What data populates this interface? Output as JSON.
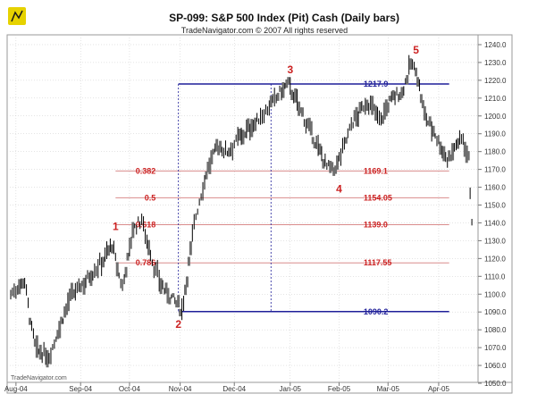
{
  "header": {
    "title": "SP-099:  S&P 500 Index (Pit) Cash  (Daily bars)",
    "subtitle": "TradeNavigator.com © 2007 All rights reserved"
  },
  "watermark": "TradeNavigator.com",
  "colors": {
    "fib_line": "#d98c8c",
    "fib_label": "#cc2222",
    "extreme_line": "#1f1f99",
    "extreme_label": "#1f1f99",
    "wave_label": "#cc2222",
    "logo_yellow": "#e6d200",
    "grid": "#c8c8c8"
  },
  "icons": {
    "logo": "trade-navigator-logo-icon"
  },
  "chart_data": {
    "type": "bar",
    "subtype": "ohlc",
    "ylim": [
      1051,
      1245
    ],
    "y_ticks": [
      1050.0,
      1060.0,
      1070.0,
      1080.0,
      1090.0,
      1100.0,
      1110.0,
      1120.0,
      1130.0,
      1140.0,
      1150.0,
      1160.0,
      1170.0,
      1180.0,
      1190.0,
      1200.0,
      1210.0,
      1220.0,
      1230.0,
      1240.0
    ],
    "y_tick_labels": [
      "1050.0",
      "1060.0",
      "1070.0",
      "1080.0",
      "1090.0",
      "1100.0",
      "1110.0",
      "1120.0",
      "1130.0",
      "1140.0",
      "1150.0",
      "1160.0",
      "1170.0",
      "1180.0",
      "1190.0",
      "1200.0",
      "1210.0",
      "1220.0",
      "1230.0",
      "1240.0"
    ],
    "x_axis_labels": [
      "Aug-04",
      "Sep-04",
      "Oct-04",
      "Nov-04",
      "Dec-04",
      "Jan-05",
      "Feb-05",
      "Mar-05",
      "Apr-05"
    ],
    "x_axis_label_bar_index": [
      3,
      40,
      68,
      97,
      128,
      160,
      188,
      216,
      245
    ],
    "bar_count": 260,
    "grid": true,
    "y_axis_side": "right",
    "price_path": [
      [
        0,
        1100
      ],
      [
        8,
        1108
      ],
      [
        12,
        1080
      ],
      [
        15,
        1068
      ],
      [
        22,
        1065
      ],
      [
        34,
        1098
      ],
      [
        52,
        1118
      ],
      [
        58,
        1128
      ],
      [
        62,
        1110
      ],
      [
        64,
        1104
      ],
      [
        70,
        1136
      ],
      [
        75,
        1142
      ],
      [
        82,
        1115
      ],
      [
        88,
        1102
      ],
      [
        94,
        1096
      ],
      [
        98,
        1091
      ],
      [
        101,
        1110
      ],
      [
        105,
        1140
      ],
      [
        112,
        1168
      ],
      [
        118,
        1183
      ],
      [
        124,
        1180
      ],
      [
        131,
        1188
      ],
      [
        140,
        1196
      ],
      [
        148,
        1205
      ],
      [
        154,
        1213
      ],
      [
        159,
        1217.9
      ],
      [
        165,
        1205
      ],
      [
        173,
        1188
      ],
      [
        181,
        1172
      ],
      [
        185,
        1169
      ],
      [
        188,
        1176
      ],
      [
        195,
        1195
      ],
      [
        204,
        1208
      ],
      [
        212,
        1198
      ],
      [
        218,
        1210
      ],
      [
        224,
        1213
      ],
      [
        229,
        1229
      ],
      [
        232,
        1226
      ],
      [
        237,
        1200
      ],
      [
        243,
        1190
      ],
      [
        250,
        1175
      ],
      [
        255,
        1184
      ],
      [
        259,
        1188
      ],
      [
        262,
        1176
      ],
      [
        264,
        1142
      ]
    ],
    "fibonacci_levels": [
      {
        "ratio": "0.382",
        "value": "1169.1",
        "price": 1169.1
      },
      {
        "ratio": "0.5",
        "value": "1154.05",
        "price": 1154.05
      },
      {
        "ratio": "0.618",
        "value": "1139.0",
        "price": 1139.0
      },
      {
        "ratio": "0.786",
        "value": "1117.55",
        "price": 1117.55
      }
    ],
    "extreme_levels": [
      {
        "value": "1217.9",
        "price": 1217.9
      },
      {
        "value": "1090.2",
        "price": 1090.2
      }
    ],
    "wave_labels": [
      {
        "label": "1",
        "bar": 60,
        "price": 1134,
        "position": "above"
      },
      {
        "label": "2",
        "bar": 96,
        "price": 1086,
        "position": "below"
      },
      {
        "label": "3",
        "bar": 160,
        "price": 1222,
        "position": "above"
      },
      {
        "label": "4",
        "bar": 188,
        "price": 1162,
        "position": "below"
      },
      {
        "label": "5",
        "bar": 232,
        "price": 1233,
        "position": "above"
      }
    ]
  }
}
